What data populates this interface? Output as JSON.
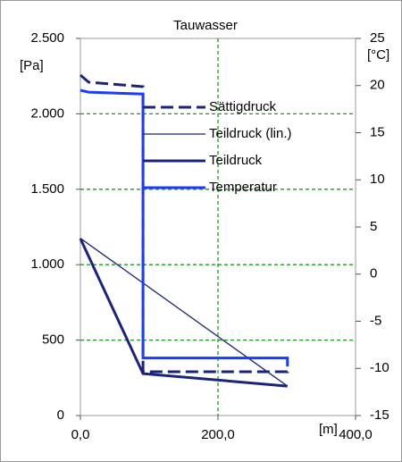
{
  "chart_data": {
    "type": "line",
    "title": "Tauwasser",
    "y_label": "[Pa]",
    "y2_label": "[°C]",
    "x_label": "[m]",
    "xlim": [
      0,
      400
    ],
    "xticks": [
      {
        "value": 0,
        "label": "0,0"
      },
      {
        "value": 200,
        "label": "200,0"
      },
      {
        "value": 400,
        "label": "400,0"
      }
    ],
    "ylim": [
      0,
      2500
    ],
    "yticks": [
      0,
      500,
      {
        "value": 1000,
        "label": "1.000"
      },
      {
        "value": 1500,
        "label": "1.500"
      },
      {
        "value": 2000,
        "label": "2.000"
      },
      {
        "value": 2500,
        "label": "2.500"
      }
    ],
    "y2lim": [
      -15,
      25
    ],
    "y2ticks": [
      -15,
      -10,
      -5,
      0,
      5,
      10,
      15,
      20,
      25
    ],
    "grid": true,
    "grid_color": "#1a9a1a",
    "legend": "center",
    "series": [
      {
        "name": "Sättigdruck",
        "color": "#1a237e",
        "width": 3,
        "dashed": true,
        "x": [
          0,
          12,
          91,
          91,
          301,
          301
        ],
        "values": [
          2257,
          2210,
          2180,
          290,
          290,
          300
        ]
      },
      {
        "name": "Teildruck (lin.)",
        "color": "#1a237e",
        "width": 1.3,
        "dashed": false,
        "x": [
          0,
          301
        ],
        "values": [
          1175,
          195
        ]
      },
      {
        "name": "Teildruck",
        "color": "#1a237e",
        "width": 3,
        "dashed": false,
        "x": [
          0,
          91,
          301
        ],
        "values": [
          1173,
          278,
          195
        ]
      },
      {
        "name": "Temperatur",
        "color": "#1a3cff",
        "width": 3,
        "dashed": false,
        "axis": "y2",
        "x": [
          0,
          12,
          91,
          91,
          301,
          301
        ],
        "values": [
          19.5,
          19.3,
          19.1,
          -8.9,
          -8.9,
          -9.8
        ]
      }
    ]
  }
}
